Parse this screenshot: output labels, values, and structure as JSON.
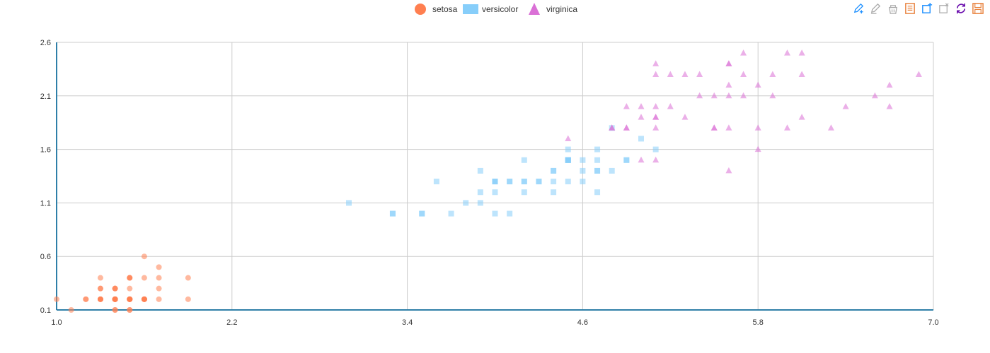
{
  "legend": [
    {
      "name": "setosa",
      "color": "#ff7f50",
      "symbol": "circle"
    },
    {
      "name": "versicolor",
      "color": "#87cefa",
      "symbol": "rect"
    },
    {
      "name": "virginica",
      "color": "#da70d6",
      "symbol": "triangle"
    }
  ],
  "toolbox": [
    {
      "icon": "mark-pen-icon",
      "color": "#1e90ff"
    },
    {
      "icon": "mark-undo-icon",
      "color": "#aaaaaa"
    },
    {
      "icon": "mark-clear-icon",
      "color": "#aaaaaa"
    },
    {
      "icon": "data-view-icon",
      "color": "#e8803a"
    },
    {
      "icon": "data-zoom-icon",
      "color": "#1e90ff"
    },
    {
      "icon": "data-zoom-reset-icon",
      "color": "#aaaaaa"
    },
    {
      "icon": "restore-icon",
      "color": "#6a0dad"
    },
    {
      "icon": "save-as-image-icon",
      "color": "#e8803a"
    }
  ],
  "chart_data": {
    "type": "scatter",
    "xlim": [
      1.0,
      7.0
    ],
    "ylim": [
      0.1,
      2.6
    ],
    "x_ticks": [
      "1.0",
      "2.2",
      "3.4",
      "4.6",
      "5.8",
      "7.0"
    ],
    "y_ticks": [
      "0.1",
      "0.6",
      "1.1",
      "1.6",
      "2.1",
      "2.6"
    ],
    "grid": true,
    "legend_position": "top-center",
    "series": [
      {
        "name": "setosa",
        "color": "#ff7f50",
        "symbol": "circle",
        "points": [
          [
            1.4,
            0.2
          ],
          [
            1.4,
            0.2
          ],
          [
            1.3,
            0.2
          ],
          [
            1.5,
            0.2
          ],
          [
            1.4,
            0.2
          ],
          [
            1.7,
            0.4
          ],
          [
            1.4,
            0.3
          ],
          [
            1.5,
            0.2
          ],
          [
            1.4,
            0.2
          ],
          [
            1.5,
            0.1
          ],
          [
            1.5,
            0.2
          ],
          [
            1.6,
            0.2
          ],
          [
            1.4,
            0.1
          ],
          [
            1.1,
            0.1
          ],
          [
            1.2,
            0.2
          ],
          [
            1.5,
            0.4
          ],
          [
            1.3,
            0.4
          ],
          [
            1.4,
            0.3
          ],
          [
            1.7,
            0.3
          ],
          [
            1.5,
            0.3
          ],
          [
            1.7,
            0.2
          ],
          [
            1.5,
            0.4
          ],
          [
            1.0,
            0.2
          ],
          [
            1.7,
            0.5
          ],
          [
            1.9,
            0.2
          ],
          [
            1.6,
            0.2
          ],
          [
            1.6,
            0.4
          ],
          [
            1.5,
            0.2
          ],
          [
            1.4,
            0.2
          ],
          [
            1.6,
            0.2
          ],
          [
            1.6,
            0.2
          ],
          [
            1.5,
            0.4
          ],
          [
            1.5,
            0.1
          ],
          [
            1.4,
            0.2
          ],
          [
            1.5,
            0.2
          ],
          [
            1.2,
            0.2
          ],
          [
            1.3,
            0.2
          ],
          [
            1.4,
            0.1
          ],
          [
            1.3,
            0.2
          ],
          [
            1.5,
            0.2
          ],
          [
            1.3,
            0.3
          ],
          [
            1.3,
            0.3
          ],
          [
            1.3,
            0.2
          ],
          [
            1.6,
            0.6
          ],
          [
            1.9,
            0.4
          ],
          [
            1.4,
            0.3
          ],
          [
            1.6,
            0.2
          ],
          [
            1.4,
            0.2
          ],
          [
            1.5,
            0.2
          ],
          [
            1.4,
            0.2
          ]
        ]
      },
      {
        "name": "versicolor",
        "color": "#87cefa",
        "symbol": "rect",
        "points": [
          [
            4.7,
            1.4
          ],
          [
            4.5,
            1.5
          ],
          [
            4.9,
            1.5
          ],
          [
            4.0,
            1.3
          ],
          [
            4.6,
            1.5
          ],
          [
            4.5,
            1.3
          ],
          [
            4.7,
            1.6
          ],
          [
            3.3,
            1.0
          ],
          [
            4.6,
            1.3
          ],
          [
            3.9,
            1.4
          ],
          [
            3.5,
            1.0
          ],
          [
            4.2,
            1.5
          ],
          [
            4.0,
            1.0
          ],
          [
            4.7,
            1.4
          ],
          [
            3.6,
            1.3
          ],
          [
            4.4,
            1.4
          ],
          [
            4.5,
            1.5
          ],
          [
            4.1,
            1.0
          ],
          [
            4.5,
            1.5
          ],
          [
            3.9,
            1.1
          ],
          [
            4.8,
            1.8
          ],
          [
            4.0,
            1.3
          ],
          [
            4.9,
            1.5
          ],
          [
            4.7,
            1.2
          ],
          [
            4.3,
            1.3
          ],
          [
            4.4,
            1.4
          ],
          [
            4.8,
            1.4
          ],
          [
            5.0,
            1.7
          ],
          [
            4.5,
            1.5
          ],
          [
            3.5,
            1.0
          ],
          [
            3.8,
            1.1
          ],
          [
            3.7,
            1.0
          ],
          [
            3.9,
            1.2
          ],
          [
            5.1,
            1.6
          ],
          [
            4.5,
            1.5
          ],
          [
            4.5,
            1.6
          ],
          [
            4.7,
            1.5
          ],
          [
            4.4,
            1.3
          ],
          [
            4.1,
            1.3
          ],
          [
            4.0,
            1.3
          ],
          [
            4.4,
            1.2
          ],
          [
            4.6,
            1.4
          ],
          [
            4.0,
            1.2
          ],
          [
            3.3,
            1.0
          ],
          [
            4.2,
            1.3
          ],
          [
            4.2,
            1.2
          ],
          [
            4.2,
            1.3
          ],
          [
            4.3,
            1.3
          ],
          [
            3.0,
            1.1
          ],
          [
            4.1,
            1.3
          ]
        ]
      },
      {
        "name": "virginica",
        "color": "#da70d6",
        "symbol": "triangle",
        "points": [
          [
            6.0,
            2.5
          ],
          [
            5.1,
            1.9
          ],
          [
            5.9,
            2.1
          ],
          [
            5.6,
            1.8
          ],
          [
            5.8,
            2.2
          ],
          [
            6.6,
            2.1
          ],
          [
            4.5,
            1.7
          ],
          [
            6.3,
            1.8
          ],
          [
            5.8,
            1.8
          ],
          [
            6.1,
            2.5
          ],
          [
            5.1,
            2.0
          ],
          [
            5.3,
            1.9
          ],
          [
            5.5,
            2.1
          ],
          [
            5.0,
            2.0
          ],
          [
            5.1,
            2.4
          ],
          [
            5.3,
            2.3
          ],
          [
            5.5,
            1.8
          ],
          [
            6.7,
            2.2
          ],
          [
            6.9,
            2.3
          ],
          [
            5.0,
            1.5
          ],
          [
            5.7,
            2.3
          ],
          [
            4.9,
            2.0
          ],
          [
            6.7,
            2.0
          ],
          [
            4.9,
            1.8
          ],
          [
            5.7,
            2.1
          ],
          [
            6.0,
            1.8
          ],
          [
            4.8,
            1.8
          ],
          [
            4.9,
            1.8
          ],
          [
            5.6,
            2.1
          ],
          [
            5.8,
            1.6
          ],
          [
            6.1,
            1.9
          ],
          [
            6.4,
            2.0
          ],
          [
            5.6,
            2.2
          ],
          [
            5.1,
            1.5
          ],
          [
            5.6,
            1.4
          ],
          [
            6.1,
            2.3
          ],
          [
            5.6,
            2.4
          ],
          [
            5.5,
            1.8
          ],
          [
            4.8,
            1.8
          ],
          [
            5.4,
            2.1
          ],
          [
            5.6,
            2.4
          ],
          [
            5.1,
            2.3
          ],
          [
            5.1,
            1.9
          ],
          [
            5.9,
            2.3
          ],
          [
            5.7,
            2.5
          ],
          [
            5.2,
            2.3
          ],
          [
            5.0,
            1.9
          ],
          [
            5.2,
            2.0
          ],
          [
            5.4,
            2.3
          ],
          [
            5.1,
            1.8
          ]
        ]
      }
    ]
  }
}
